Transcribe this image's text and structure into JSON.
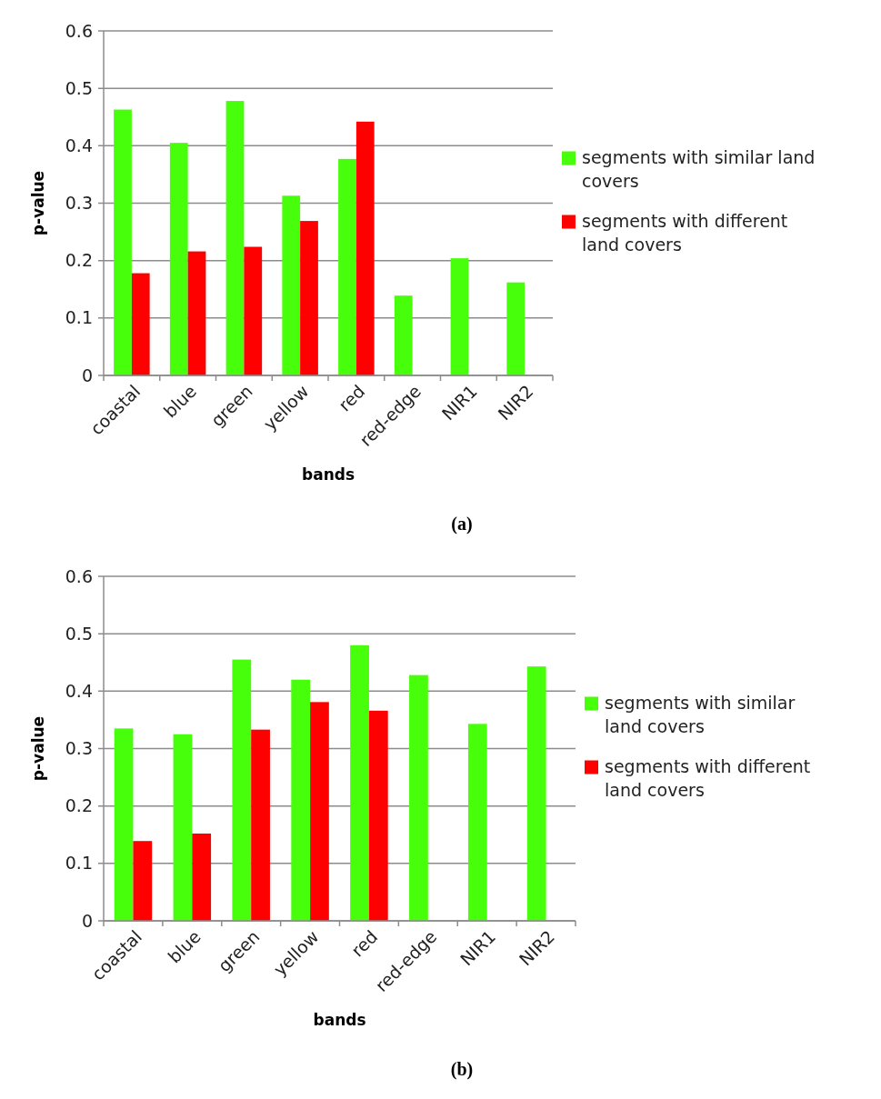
{
  "chart_data": [
    {
      "type": "bar",
      "title": "(a)",
      "xlabel": "bands",
      "ylabel": "p-value",
      "categories": [
        "coastal",
        "blue",
        "green",
        "yellow",
        "red",
        "red-edge",
        "NIR1",
        "NIR2"
      ],
      "series": [
        {
          "name": "segments with similar land covers",
          "color": "#47ff0a",
          "values": [
            0.463,
            0.405,
            0.478,
            0.313,
            0.377,
            0.139,
            0.204,
            0.162
          ]
        },
        {
          "name": "segments with different land covers",
          "color": "#ff0000",
          "values": [
            0.178,
            0.216,
            0.224,
            0.269,
            0.442,
            null,
            null,
            null
          ]
        }
      ],
      "ylim": [
        0,
        0.6
      ],
      "yticks": [
        0,
        0.1,
        0.2,
        0.3,
        0.4,
        0.5,
        0.6
      ],
      "grid": "y",
      "legend": "right"
    },
    {
      "type": "bar",
      "title": "(b)",
      "xlabel": "bands",
      "ylabel": "p-value",
      "categories": [
        "coastal",
        "blue",
        "green",
        "yellow",
        "red",
        "red-edge",
        "NIR1",
        "NIR2"
      ],
      "series": [
        {
          "name": "segments with similar land covers",
          "color": "#47ff0a",
          "values": [
            0.335,
            0.325,
            0.455,
            0.42,
            0.48,
            0.428,
            0.343,
            0.443
          ]
        },
        {
          "name": "segments with different land covers",
          "color": "#ff0000",
          "values": [
            0.139,
            0.152,
            0.333,
            0.381,
            0.366,
            null,
            null,
            null
          ]
        }
      ],
      "ylim": [
        0,
        0.6
      ],
      "yticks": [
        0,
        0.1,
        0.2,
        0.3,
        0.4,
        0.5,
        0.6
      ],
      "grid": "y",
      "legend": "right"
    }
  ]
}
